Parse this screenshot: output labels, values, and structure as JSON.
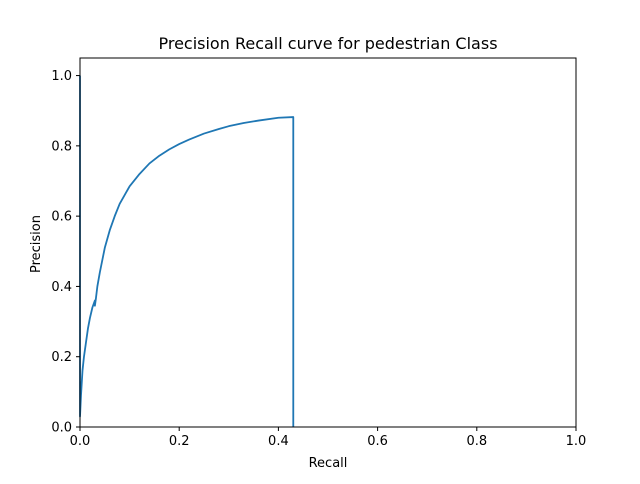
{
  "chart_data": {
    "type": "line",
    "title": "Precision Recall curve for pedestrian Class",
    "xlabel": "Recall",
    "ylabel": "Precision",
    "xlim": [
      0,
      1.0
    ],
    "ylim": [
      0,
      1.05
    ],
    "x_ticks": [
      "0.0",
      "0.2",
      "0.4",
      "0.6",
      "0.8",
      "1.0"
    ],
    "y_ticks": [
      "0.0",
      "0.2",
      "0.4",
      "0.6",
      "0.8",
      "1.0"
    ],
    "grid": false,
    "legend": "none",
    "line_color": "#1f77b4",
    "series": [
      {
        "x": [
          0.0,
          0.0,
          0.0,
          0.002,
          0.005,
          0.008,
          0.012,
          0.016,
          0.02,
          0.025,
          0.03,
          0.03,
          0.032,
          0.035,
          0.04,
          0.05,
          0.06,
          0.07,
          0.08,
          0.09,
          0.1,
          0.12,
          0.14,
          0.16,
          0.18,
          0.2,
          0.22,
          0.25,
          0.28,
          0.3,
          0.33,
          0.36,
          0.4,
          0.43,
          0.43
        ],
        "y": [
          1.0,
          0.6,
          0.03,
          0.09,
          0.16,
          0.2,
          0.24,
          0.28,
          0.31,
          0.34,
          0.36,
          0.345,
          0.365,
          0.4,
          0.44,
          0.51,
          0.56,
          0.6,
          0.635,
          0.66,
          0.685,
          0.72,
          0.75,
          0.772,
          0.79,
          0.805,
          0.818,
          0.835,
          0.848,
          0.856,
          0.865,
          0.872,
          0.88,
          0.882,
          0.0
        ]
      }
    ]
  }
}
